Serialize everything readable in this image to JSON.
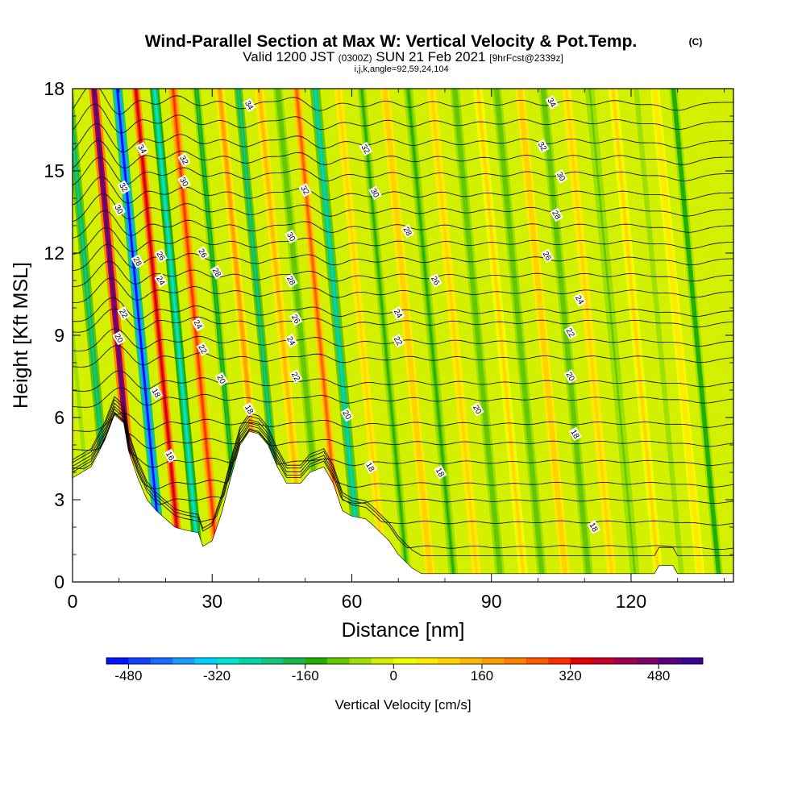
{
  "chart_data": {
    "type": "heatmap",
    "title": "Wind-Parallel Section at Max W: Vertical Velocity & Pot.Temp.",
    "title_mark": "(C)",
    "subtitle": {
      "prefix": "Valid 1200 JST",
      "utc": "(0300Z)",
      "date": "SUN 21 Feb 2021",
      "fcst": "[9hrFcst@2339z]"
    },
    "params": "i,j,k,angle=92,59,24,104",
    "xlabel": "Distance [nm]",
    "ylabel": "Height [Kft MSL]",
    "xlim": [
      0,
      142
    ],
    "ylim": [
      0,
      18
    ],
    "x_ticks": [
      0,
      30,
      60,
      90,
      120
    ],
    "y_ticks": [
      0,
      3,
      6,
      9,
      12,
      15,
      18
    ],
    "x_minor_step": 10,
    "y_minor_step": 1,
    "grid": false,
    "colorbar": {
      "label": "Vertical Velocity [cm/s]",
      "placement": "bottom",
      "ticks": [
        -480,
        -320,
        -160,
        0,
        160,
        320,
        480
      ],
      "vmin": -520,
      "vmax": 560,
      "step": 40,
      "colors": [
        "#0014ff",
        "#1044ff",
        "#1a6cff",
        "#1a9cff",
        "#00d0ff",
        "#00e5d2",
        "#00d7a6",
        "#10c880",
        "#16b94a",
        "#22b000",
        "#66c800",
        "#9ee000",
        "#d2f000",
        "#f0ff00",
        "#ffea00",
        "#ffd200",
        "#ffb800",
        "#ff9c00",
        "#ff7f00",
        "#ff5a00",
        "#ff2d00",
        "#e60000",
        "#c4002a",
        "#a00050",
        "#820066",
        "#5a0082",
        "#3c0096"
      ]
    },
    "velocity_bands": [
      {
        "x": 1,
        "w": 2,
        "v": -150
      },
      {
        "x": 5,
        "w": 1.5,
        "v": -80
      },
      {
        "x": 9,
        "w": 2,
        "v": -240
      },
      {
        "x": 14.5,
        "w": 2.2,
        "v": 500
      },
      {
        "x": 19.5,
        "w": 2.2,
        "v": -500
      },
      {
        "x": 23.5,
        "w": 1.8,
        "v": 360
      },
      {
        "x": 27.5,
        "w": 2,
        "v": -300
      },
      {
        "x": 31.5,
        "w": 2,
        "v": 280
      },
      {
        "x": 36.5,
        "w": 1.8,
        "v": -170
      },
      {
        "x": 41.5,
        "w": 2,
        "v": 160
      },
      {
        "x": 45.5,
        "w": 1.8,
        "v": -220
      },
      {
        "x": 50,
        "w": 2,
        "v": 120
      },
      {
        "x": 54,
        "w": 2,
        "v": -120
      },
      {
        "x": 58,
        "w": 2,
        "v": 240
      },
      {
        "x": 62,
        "w": 2.2,
        "v": -260
      },
      {
        "x": 67,
        "w": 1.8,
        "v": 90
      },
      {
        "x": 72,
        "w": 1.8,
        "v": -130
      },
      {
        "x": 77,
        "w": 2,
        "v": 100
      },
      {
        "x": 82,
        "w": 2,
        "v": -140
      },
      {
        "x": 87,
        "w": 2,
        "v": 90
      },
      {
        "x": 92,
        "w": 2,
        "v": -120
      },
      {
        "x": 97,
        "w": 2,
        "v": 80
      },
      {
        "x": 101,
        "w": 2,
        "v": -110
      },
      {
        "x": 106,
        "w": 2,
        "v": 100
      },
      {
        "x": 111,
        "w": 2,
        "v": -110
      },
      {
        "x": 116,
        "w": 2,
        "v": 90
      },
      {
        "x": 121,
        "w": 2,
        "v": -90
      },
      {
        "x": 126,
        "w": 2,
        "v": 80
      },
      {
        "x": 131,
        "w": 2,
        "v": -80
      },
      {
        "x": 135,
        "w": 2,
        "v": 60
      },
      {
        "x": 139,
        "w": 1.8,
        "v": -160
      }
    ],
    "terrain": [
      [
        0,
        3.8
      ],
      [
        4,
        4.2
      ],
      [
        7,
        5.2
      ],
      [
        9,
        6.1
      ],
      [
        11,
        5.8
      ],
      [
        12,
        4.8
      ],
      [
        14,
        3.8
      ],
      [
        16,
        3.0
      ],
      [
        18,
        2.6
      ],
      [
        20,
        2.3
      ],
      [
        22,
        2.0
      ],
      [
        24,
        1.9
      ],
      [
        27,
        1.8
      ],
      [
        28,
        1.3
      ],
      [
        30,
        1.5
      ],
      [
        32,
        2.5
      ],
      [
        34,
        3.8
      ],
      [
        36,
        5.0
      ],
      [
        38,
        5.5
      ],
      [
        40,
        5.4
      ],
      [
        42,
        5.0
      ],
      [
        44,
        4.2
      ],
      [
        46,
        3.6
      ],
      [
        49,
        3.6
      ],
      [
        51,
        4.0
      ],
      [
        54,
        4.2
      ],
      [
        56,
        3.6
      ],
      [
        58,
        2.6
      ],
      [
        60,
        2.4
      ],
      [
        63,
        2.3
      ],
      [
        65,
        2.0
      ],
      [
        68,
        1.5
      ],
      [
        70,
        1.0
      ],
      [
        73,
        0.5
      ],
      [
        75,
        0.3
      ],
      [
        125,
        0.3
      ],
      [
        126,
        0.6
      ],
      [
        129,
        0.6
      ],
      [
        130,
        0.3
      ],
      [
        142,
        0.3
      ]
    ],
    "isentrope_levels": [
      16,
      18,
      20,
      22,
      24,
      26,
      28,
      30,
      32,
      34
    ],
    "isentropes": [
      {
        "theta": 16,
        "base": 3.6,
        "ls": [
          [
            21,
            4.6
          ]
        ]
      },
      {
        "theta": 18,
        "base": 5.1,
        "ls": [
          [
            18,
            6.9
          ],
          [
            38,
            6.3
          ],
          [
            64,
            4.2
          ],
          [
            79,
            4.0
          ],
          [
            108,
            5.4
          ],
          [
            112,
            2.0
          ]
        ]
      },
      {
        "theta": 20,
        "base": 6.7,
        "ls": [
          [
            10,
            8.9
          ],
          [
            32,
            7.4
          ],
          [
            59,
            6.1
          ],
          [
            87,
            6.3
          ],
          [
            107,
            7.5
          ]
        ]
      },
      {
        "theta": 22,
        "base": 8.2,
        "ls": [
          [
            11,
            9.8
          ],
          [
            28,
            8.5
          ],
          [
            48,
            7.5
          ],
          [
            70,
            8.8
          ],
          [
            107,
            9.1
          ]
        ]
      },
      {
        "theta": 24,
        "base": 9.5,
        "ls": [
          [
            19,
            11.0
          ],
          [
            27,
            9.4
          ],
          [
            47,
            8.8
          ],
          [
            70,
            9.8
          ],
          [
            109,
            10.3
          ]
        ]
      },
      {
        "theta": 26,
        "base": 10.6,
        "ls": [
          [
            19,
            11.9
          ],
          [
            28,
            12.0
          ],
          [
            48,
            9.6
          ],
          [
            78,
            11.0
          ],
          [
            102,
            11.9
          ]
        ]
      },
      {
        "theta": 28,
        "base": 11.8,
        "ls": [
          [
            14,
            11.7
          ],
          [
            31,
            11.3
          ],
          [
            47,
            11.0
          ],
          [
            72,
            12.8
          ],
          [
            104,
            13.4
          ]
        ]
      },
      {
        "theta": 30,
        "base": 13.0,
        "ls": [
          [
            10,
            13.6
          ],
          [
            24,
            14.6
          ],
          [
            47,
            12.6
          ],
          [
            65,
            14.2
          ],
          [
            105,
            14.8
          ]
        ]
      },
      {
        "theta": 32,
        "base": 14.2,
        "ls": [
          [
            11,
            14.4
          ],
          [
            24,
            15.4
          ],
          [
            50,
            14.3
          ],
          [
            63,
            15.8
          ],
          [
            101,
            15.9
          ]
        ]
      },
      {
        "theta": 34,
        "base": 15.5,
        "ls": [
          [
            15,
            15.8
          ],
          [
            38,
            17.4
          ],
          [
            103,
            17.5
          ]
        ]
      }
    ],
    "extra_isentropes": [
      0.6,
      1.3,
      2.2,
      3.0,
      4.4,
      5.8,
      7.3,
      8.8,
      9.9,
      11.2,
      12.4,
      13.6,
      14.9,
      16.1,
      16.8,
      17.5
    ]
  }
}
